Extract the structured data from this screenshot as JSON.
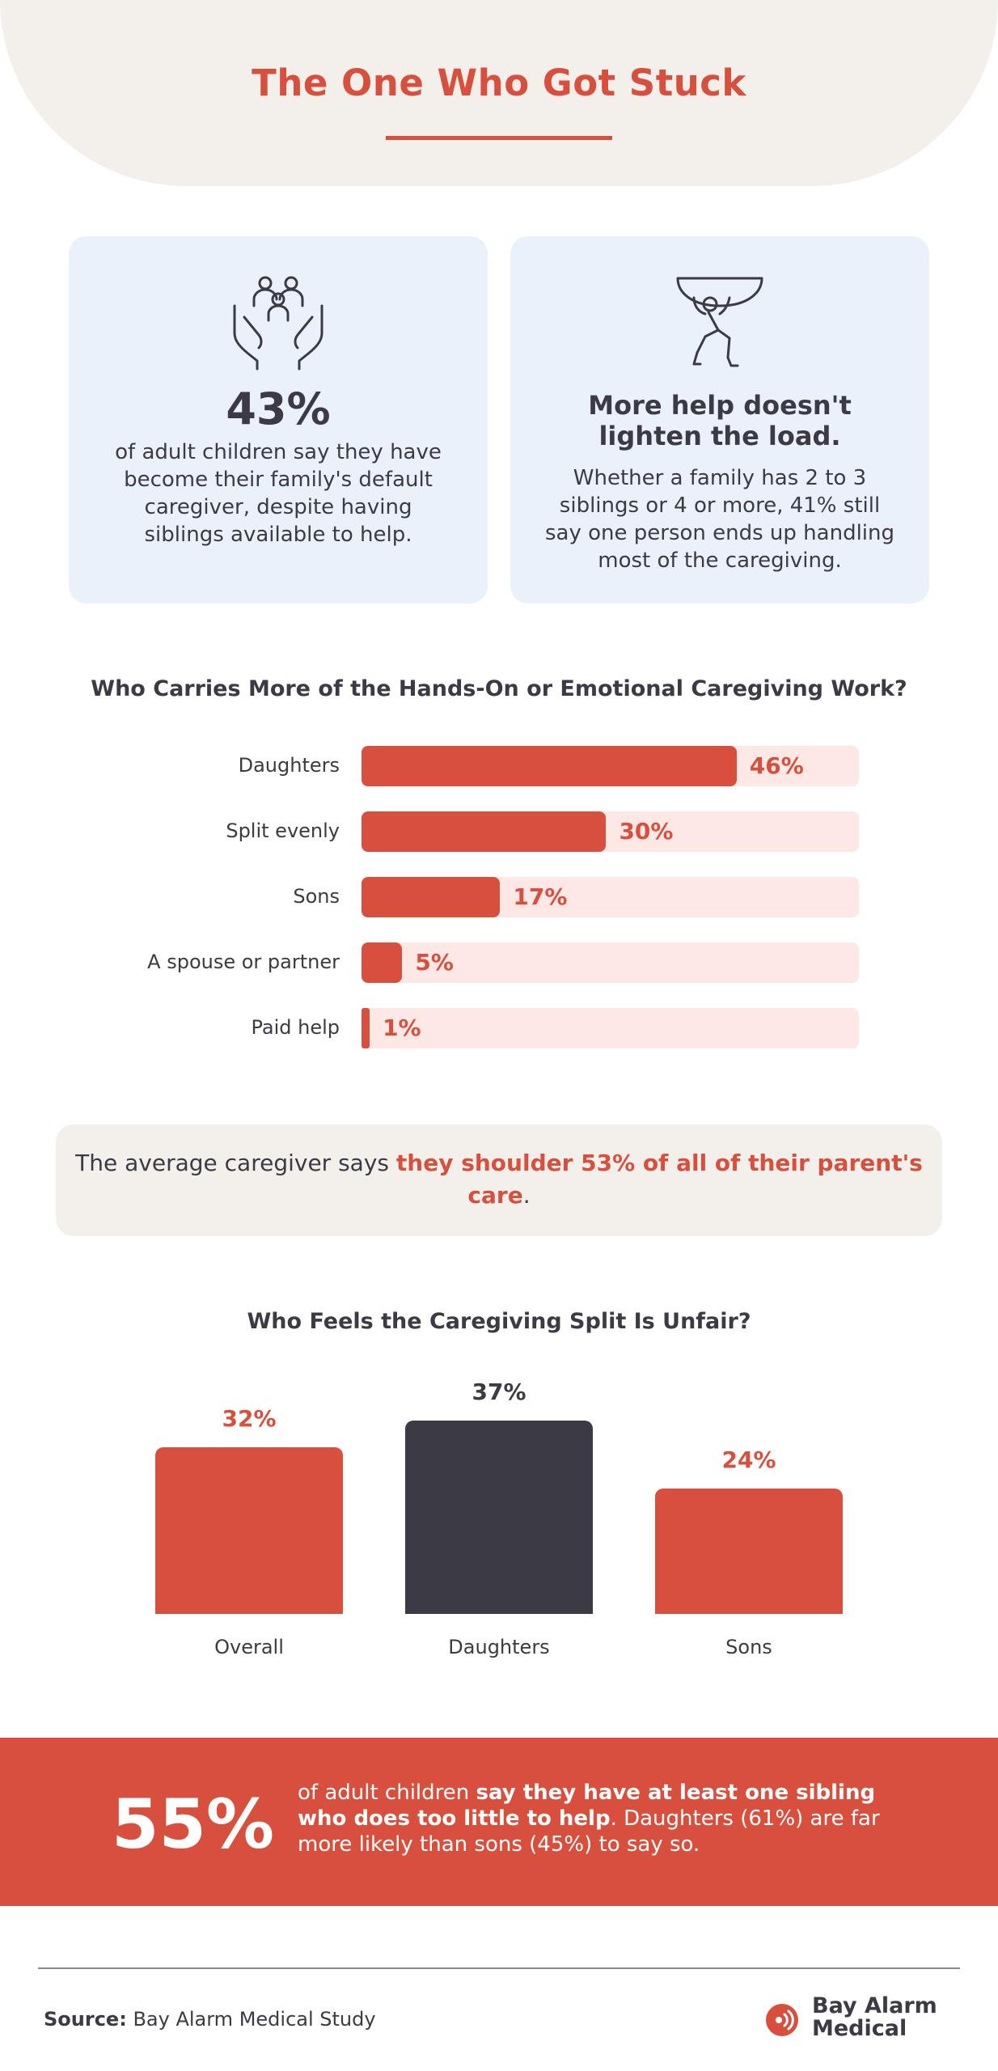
{
  "header": {
    "title": "The One Who Got Stuck"
  },
  "cards": {
    "left": {
      "icon": "family-hands-icon",
      "stat": "43%",
      "text": "of adult children say they have become their family's default caregiver, despite having siblings available to help."
    },
    "right": {
      "icon": "person-carrying-load-icon",
      "heading": "More help doesn't lighten the load.",
      "text": "Whether a family has 2 to 3 siblings or 4 or more, 41% still say one person ends up handling most of the caregiving."
    }
  },
  "callout": {
    "prefix": "The average caregiver says ",
    "highlight": "they shoulder 53% of all of their parent's care",
    "suffix": "."
  },
  "banner": {
    "stat": "55%",
    "text_prefix": "of adult children ",
    "text_bold": "say they have at least one sibling who does too little to help",
    "text_suffix": ". Daughters (61%) are far more likely than sons (45%) to say so."
  },
  "footer": {
    "source_label": "Source:",
    "source_text": "Bay Alarm Medical Study",
    "logo_line1": "Bay Alarm",
    "logo_line2": "Medical"
  },
  "chart_data": [
    {
      "type": "bar",
      "orientation": "horizontal",
      "title": "Who Carries More of the Hands-On or Emotional Caregiving Work?",
      "categories": [
        "Daughters",
        "Split evenly",
        "Sons",
        "A spouse or partner",
        "Paid help"
      ],
      "values": [
        46,
        30,
        17,
        5,
        1
      ],
      "value_labels": [
        "46%",
        "30%",
        "17%",
        "5%",
        "1%"
      ],
      "unit": "%",
      "colors": {
        "bar": "#d94f3d",
        "track": "#fde8e6",
        "label": "#d94f3d"
      }
    },
    {
      "type": "bar",
      "orientation": "vertical",
      "title": "Who Feels the Caregiving Split Is Unfair?",
      "categories": [
        "Overall",
        "Daughters",
        "Sons"
      ],
      "values": [
        32,
        37,
        24
      ],
      "value_labels": [
        "32%",
        "37%",
        "24%"
      ],
      "unit": "%",
      "colors": [
        "#d94f3d",
        "#3b3a45",
        "#d94f3d"
      ]
    }
  ]
}
